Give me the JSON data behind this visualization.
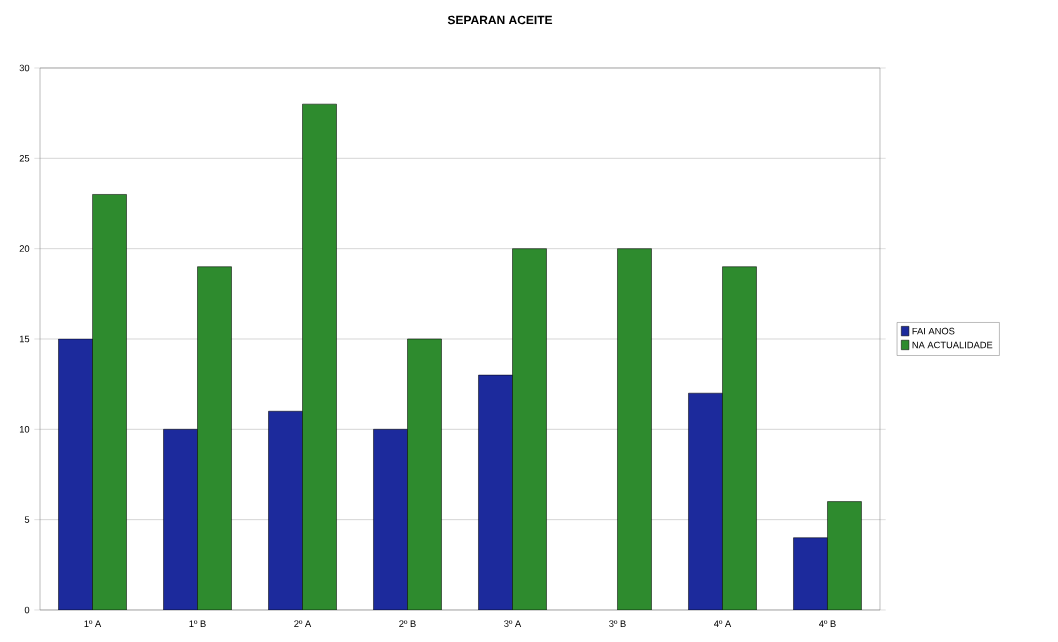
{
  "chart_data": {
    "type": "bar",
    "title": "SEPARAN ACEITE",
    "categories": [
      "1º A",
      "1º B",
      "2º A",
      "2º B",
      "3º A",
      "3º B",
      "4º A",
      "4º B"
    ],
    "series": [
      {
        "name": "FAI ANOS",
        "color": "#1c2a9c",
        "values": [
          15,
          10,
          11,
          10,
          13,
          null,
          12,
          4
        ]
      },
      {
        "name": "NA ACTUALIDADE",
        "color": "#2e8b2e",
        "values": [
          23,
          19,
          28,
          15,
          20,
          20,
          19,
          6
        ]
      }
    ],
    "ylim": [
      0,
      30
    ],
    "yticks": [
      0,
      5,
      10,
      15,
      20,
      25,
      30
    ],
    "grid": "y",
    "legend": "right"
  }
}
